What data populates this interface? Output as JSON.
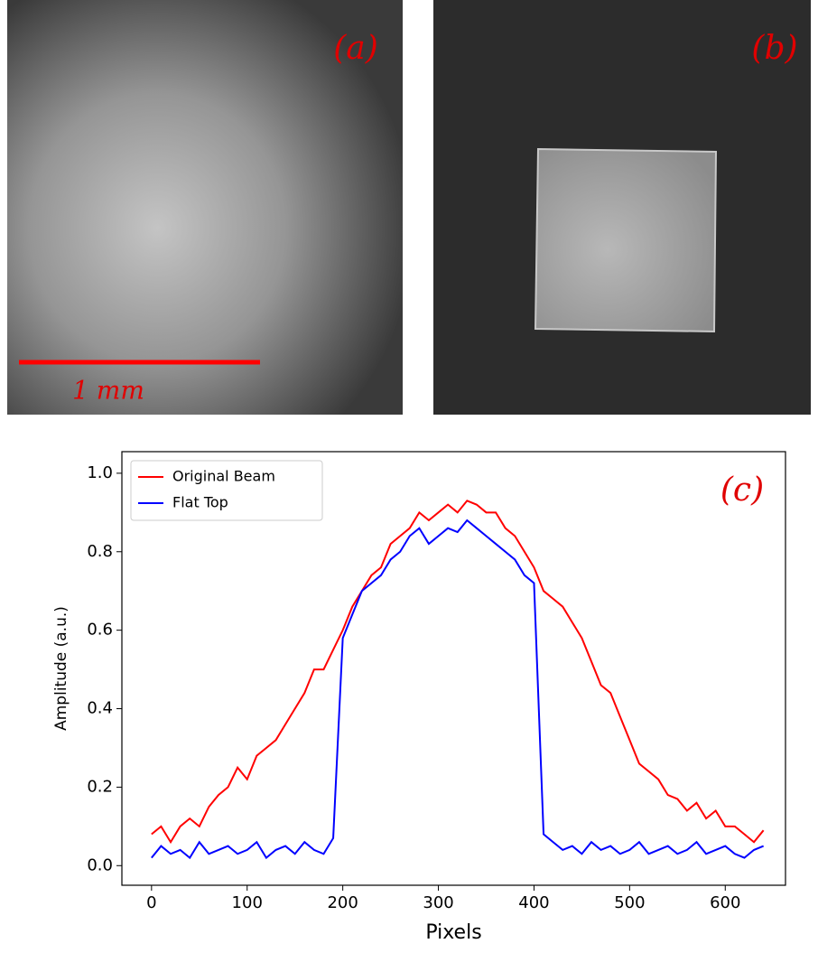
{
  "panels": [
    {
      "label": "(a)",
      "scale_bar": "1 mm"
    },
    {
      "label": "(b)"
    }
  ],
  "chart_data": {
    "type": "line",
    "annotation": "(c)",
    "x_label": "Pixels",
    "y_label": "Amplitude (a.u.)",
    "x": [
      0,
      10,
      20,
      30,
      40,
      50,
      60,
      70,
      80,
      90,
      100,
      110,
      120,
      130,
      140,
      150,
      160,
      170,
      180,
      190,
      200,
      210,
      220,
      230,
      240,
      250,
      260,
      270,
      280,
      290,
      300,
      310,
      320,
      330,
      340,
      350,
      360,
      370,
      380,
      390,
      400,
      410,
      420,
      430,
      440,
      450,
      460,
      470,
      480,
      490,
      500,
      510,
      520,
      530,
      540,
      550,
      560,
      570,
      580,
      590,
      600,
      610,
      620,
      630,
      640
    ],
    "series": [
      {
        "name": "Original Beam",
        "color": "#ff0000",
        "values": [
          0.08,
          0.1,
          0.06,
          0.1,
          0.12,
          0.1,
          0.15,
          0.18,
          0.2,
          0.25,
          0.22,
          0.28,
          0.3,
          0.32,
          0.36,
          0.4,
          0.44,
          0.5,
          0.5,
          0.55,
          0.6,
          0.66,
          0.7,
          0.74,
          0.76,
          0.82,
          0.84,
          0.86,
          0.9,
          0.88,
          0.9,
          0.92,
          0.9,
          0.93,
          0.92,
          0.9,
          0.9,
          0.86,
          0.84,
          0.8,
          0.76,
          0.7,
          0.68,
          0.66,
          0.62,
          0.58,
          0.52,
          0.46,
          0.44,
          0.38,
          0.32,
          0.26,
          0.24,
          0.22,
          0.18,
          0.17,
          0.14,
          0.16,
          0.12,
          0.14,
          0.1,
          0.1,
          0.08,
          0.06,
          0.09
        ]
      },
      {
        "name": "Flat Top",
        "color": "#0000ff",
        "values": [
          0.02,
          0.05,
          0.03,
          0.04,
          0.02,
          0.06,
          0.03,
          0.04,
          0.05,
          0.03,
          0.04,
          0.06,
          0.02,
          0.04,
          0.05,
          0.03,
          0.06,
          0.04,
          0.03,
          0.07,
          0.58,
          0.64,
          0.7,
          0.72,
          0.74,
          0.78,
          0.8,
          0.84,
          0.86,
          0.82,
          0.84,
          0.86,
          0.85,
          0.88,
          0.86,
          0.84,
          0.82,
          0.8,
          0.78,
          0.74,
          0.72,
          0.08,
          0.06,
          0.04,
          0.05,
          0.03,
          0.06,
          0.04,
          0.05,
          0.03,
          0.04,
          0.06,
          0.03,
          0.04,
          0.05,
          0.03,
          0.04,
          0.06,
          0.03,
          0.04,
          0.05,
          0.03,
          0.02,
          0.04,
          0.05
        ]
      }
    ],
    "xlim": [
      -31,
      663
    ],
    "ylim": [
      -0.05,
      1.055
    ],
    "xticks": [
      0,
      100,
      200,
      300,
      400,
      500,
      600
    ],
    "yticks": [
      {
        "value": 0,
        "label": "0.0"
      },
      {
        "value": 0.2,
        "label": "0.2"
      },
      {
        "value": 0.4,
        "label": "0.4"
      },
      {
        "value": 0.6,
        "label": "0.6"
      },
      {
        "value": 0.8,
        "label": "0.8"
      },
      {
        "value": 1,
        "label": "1.0"
      }
    ],
    "legend": "upper left",
    "grid": false
  }
}
